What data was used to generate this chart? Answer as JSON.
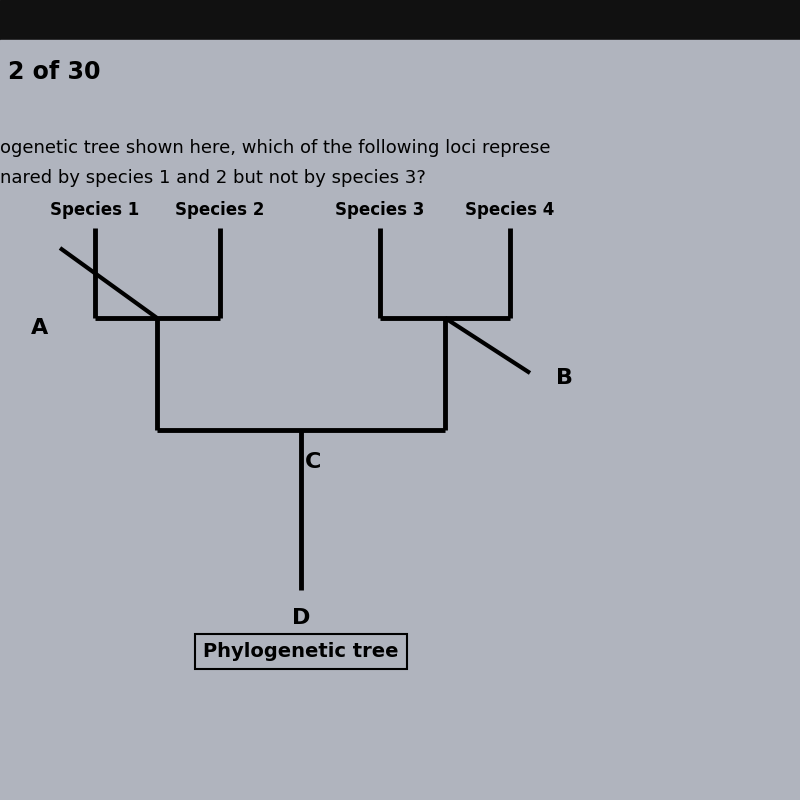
{
  "title": "2 of 30",
  "q1": "ogenetic tree shown here, which of the following loci represe",
  "q2": "nared by species 1 and 2 but not by species 3?",
  "species": [
    "Species 1",
    "Species 2",
    "Species 3",
    "Species 4"
  ],
  "caption": "Phylogenetic tree",
  "bg_top": "#1a1a2e",
  "bg_mid": "#b8bcc8",
  "line_color": "#000000",
  "lw": 3.5,
  "fig_w": 8.0,
  "fig_h": 8.0,
  "dpi": 100
}
